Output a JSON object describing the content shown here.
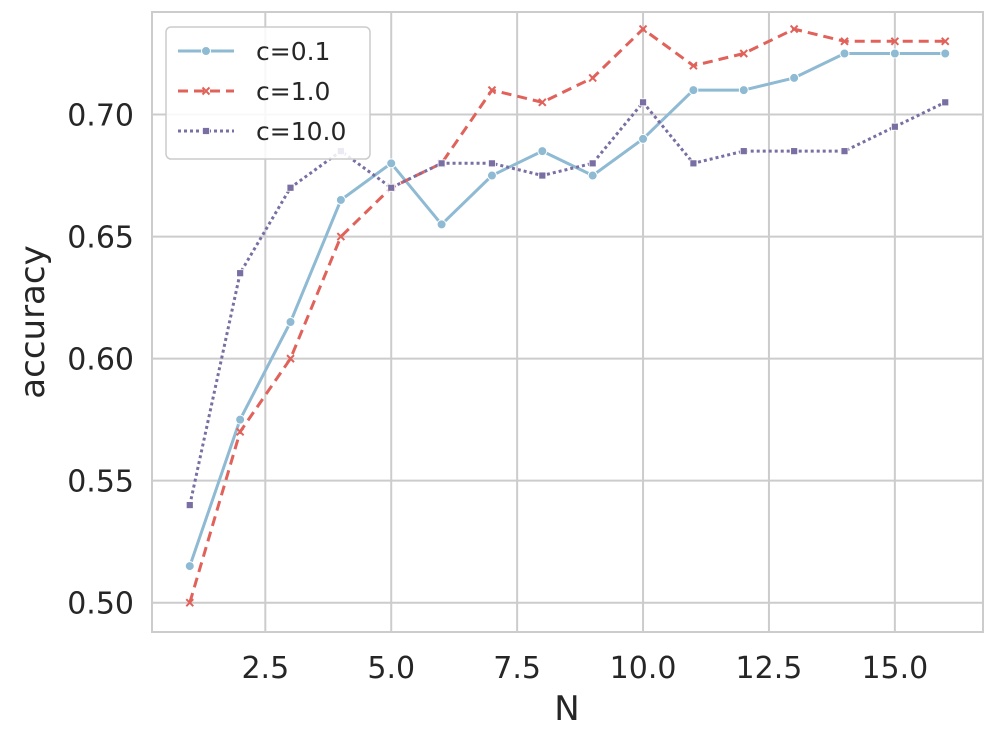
{
  "chart_data": {
    "type": "line",
    "xlabel": "N",
    "ylabel": "accuracy",
    "xlim": [
      0.25,
      16.75
    ],
    "ylim": [
      0.488,
      0.742
    ],
    "xticks": [
      2.5,
      5.0,
      7.5,
      10.0,
      12.5,
      15.0
    ],
    "xtick_labels": [
      "2.5",
      "5.0",
      "7.5",
      "10.0",
      "12.5",
      "15.0"
    ],
    "yticks": [
      0.5,
      0.55,
      0.6,
      0.65,
      0.7
    ],
    "ytick_labels": [
      "0.50",
      "0.55",
      "0.60",
      "0.65",
      "0.70"
    ],
    "grid": true,
    "legend_position": "top-left",
    "x": [
      1,
      2,
      3,
      4,
      5,
      6,
      7,
      8,
      9,
      10,
      11,
      12,
      13,
      14,
      15,
      16
    ],
    "series": [
      {
        "name": "c=0.1",
        "color": "#8fbad3",
        "line_style": "solid",
        "marker": "circle",
        "values": [
          0.515,
          0.575,
          0.615,
          0.665,
          0.68,
          0.655,
          0.675,
          0.685,
          0.675,
          0.69,
          0.71,
          0.71,
          0.715,
          0.725,
          0.725,
          0.725
        ]
      },
      {
        "name": "c=1.0",
        "color": "#e0625a",
        "line_style": "dashed",
        "marker": "x",
        "values": [
          0.5,
          0.57,
          0.6,
          0.65,
          0.67,
          0.68,
          0.71,
          0.705,
          0.715,
          0.735,
          0.72,
          0.725,
          0.735,
          0.73,
          0.73,
          0.73
        ]
      },
      {
        "name": "c=10.0",
        "color": "#7a6fa3",
        "line_style": "dotted",
        "marker": "square",
        "values": [
          0.54,
          0.635,
          0.67,
          0.685,
          0.67,
          0.68,
          0.68,
          0.675,
          0.68,
          0.705,
          0.68,
          0.685,
          0.685,
          0.685,
          0.695,
          0.705
        ]
      }
    ]
  }
}
